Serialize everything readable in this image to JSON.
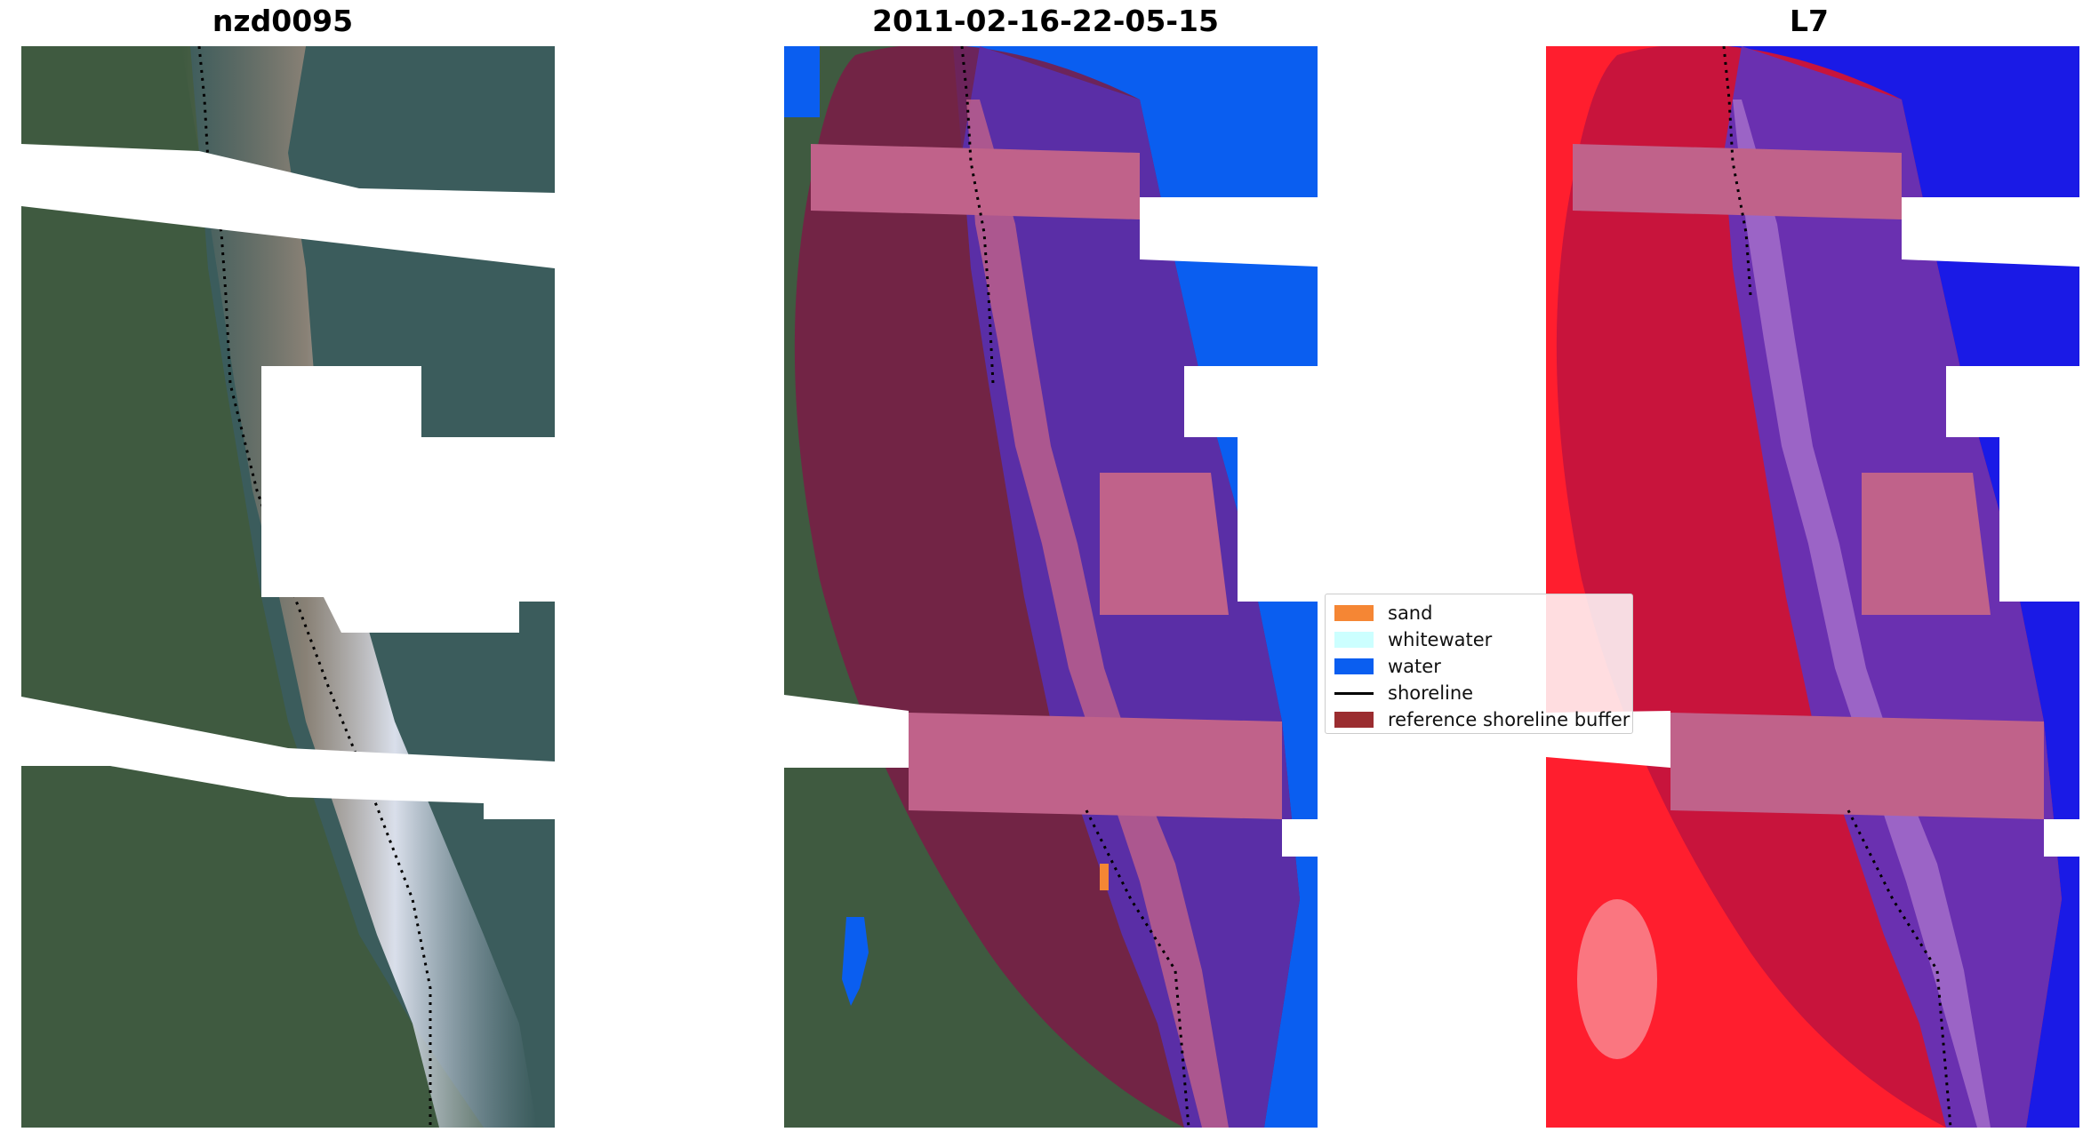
{
  "panels": {
    "left": {
      "title": "nzd0095"
    },
    "middle": {
      "title": "2011-02-16-22-05-15"
    },
    "right": {
      "title": "L7"
    }
  },
  "legend": {
    "items": [
      {
        "label": "sand",
        "color": "#f58634",
        "kind": "patch"
      },
      {
        "label": "whitewater",
        "color": "#ccffff",
        "kind": "patch"
      },
      {
        "label": "water",
        "color": "#0a5ef0",
        "kind": "patch"
      },
      {
        "label": "shoreline",
        "color": "#000000",
        "kind": "line"
      },
      {
        "label": "reference shoreline buffer",
        "color": "#9b2d30",
        "kind": "patch"
      }
    ]
  },
  "colors": {
    "vegetation": "#3f5a40",
    "water_rgb": "#3b5c5c",
    "surf": "#cfd6e8",
    "water_class": "#0a5ef0",
    "buffer": "#7a1c45",
    "buffer_highlight": "#c0628a",
    "ocean_purple": "#5a2ea6",
    "land_red": "#ff1e2e",
    "nodata": "#ffffff"
  }
}
